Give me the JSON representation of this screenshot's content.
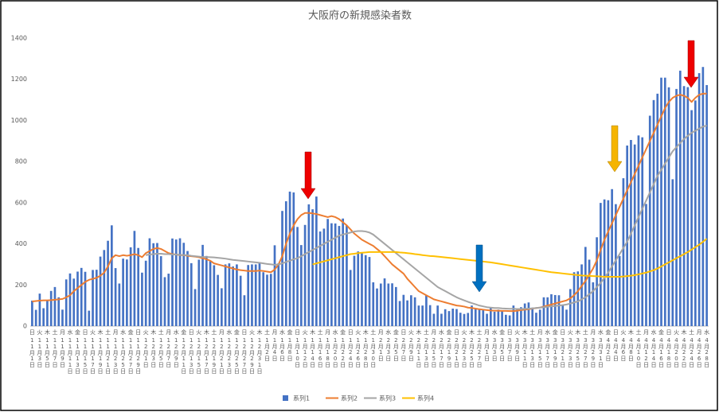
{
  "chart_data": {
    "type": "combo",
    "title": "大阪府の新規感染者数",
    "categories": [
      "11月1日",
      null,
      "11月3日",
      null,
      "11月5日",
      null,
      "11月7日",
      null,
      "11月9日",
      null,
      "11月11日",
      null,
      "11月13日",
      null,
      "11月15日",
      null,
      "11月17日",
      null,
      "11月19日",
      null,
      "11月21日",
      null,
      "11月23日",
      null,
      "11月25日",
      null,
      "11月27日",
      null,
      "11月29日",
      null,
      "12月1日",
      null,
      "12月3日",
      null,
      "12月5日",
      null,
      "12月7日",
      null,
      "12月9日",
      null,
      "12月11日",
      null,
      "12月13日",
      null,
      "12月15日",
      null,
      "12月17日",
      null,
      "12月19日",
      null,
      "12月21日",
      null,
      "12月23日",
      null,
      "12月25日",
      null,
      "12月27日",
      null,
      "12月29日",
      null,
      "12月31日",
      null,
      "1月2日",
      null,
      "1月4日",
      null,
      "1月6日",
      null,
      "1月8日",
      null,
      "1月10日",
      null,
      "1月12日",
      null,
      "1月14日",
      null,
      "1月16日",
      null,
      "1月18日",
      null,
      "1月20日",
      null,
      "1月22日",
      null,
      "1月24日",
      null,
      "1月26日",
      null,
      "1月28日",
      null,
      "1月30日",
      null,
      "2月1日",
      null,
      "2月3日",
      null,
      "2月5日",
      null,
      "2月7日",
      null,
      "2月9日",
      null,
      "2月11日",
      null,
      "2月13日",
      null,
      "2月15日",
      null,
      "2月17日",
      null,
      "2月19日",
      null,
      "2月21日",
      null,
      "2月23日",
      null,
      "2月25日",
      null,
      "2月27日",
      null,
      "3月1日",
      null,
      "3月3日",
      null,
      "3月5日",
      null,
      "3月7日",
      null,
      "3月9日",
      null,
      "3月11日",
      null,
      "3月13日",
      null,
      "3月15日",
      null,
      "3月17日",
      null,
      "3月19日",
      null,
      "3月21日",
      null,
      "3月23日",
      null,
      "3月25日",
      null,
      "3月27日",
      null,
      "3月29日",
      null,
      "3月31日",
      null,
      "4月2日",
      null,
      "4月4日",
      null,
      "4月6日",
      null,
      "4月8日",
      null,
      "4月10日",
      null,
      "4月12日",
      null,
      "4月14日",
      null,
      "4月16日",
      null,
      "4月18日",
      null,
      "4月20日",
      null,
      "4月22日",
      null,
      "4月24日",
      null,
      "4月26日",
      null,
      "4月28日"
    ],
    "weekdays": [
      "日",
      null,
      "火",
      null,
      "木",
      null,
      "土",
      null,
      "月",
      null,
      "水",
      null,
      "金",
      null,
      "日",
      null,
      "火",
      null,
      "木",
      null,
      "土",
      null,
      "月",
      null,
      "水",
      null,
      "金",
      null,
      "日",
      null,
      "火",
      null,
      "木",
      null,
      "土",
      null,
      "月",
      null,
      "水",
      null,
      "金",
      null,
      "日",
      null,
      "火",
      null,
      "木",
      null,
      "土",
      null,
      "月",
      null,
      "水",
      null,
      "金",
      null,
      "日",
      null,
      "火",
      null,
      "木",
      null,
      "土",
      null,
      "月",
      null,
      "水",
      null,
      "金",
      null,
      "日",
      null,
      "火",
      null,
      "木",
      null,
      "土",
      null,
      "月",
      null,
      "水",
      null,
      "金",
      null,
      "日",
      null,
      "火",
      null,
      "木",
      null,
      "土",
      null,
      "月",
      null,
      "水",
      null,
      "金",
      null,
      "日",
      null,
      "火",
      null,
      "木",
      null,
      "土",
      null,
      "月",
      null,
      "水",
      null,
      "金",
      null,
      "日",
      null,
      "火",
      null,
      "木",
      null,
      "土",
      null,
      "月",
      null,
      "水",
      null,
      "金",
      null,
      "日",
      null,
      "火",
      null,
      "木",
      null,
      "土",
      null,
      "月",
      null,
      "水",
      null,
      "金",
      null,
      "日",
      null,
      "火",
      null,
      "木",
      null,
      "土",
      null,
      "月",
      null,
      "水",
      null,
      "金",
      null,
      "日",
      null,
      "火",
      null,
      "木",
      null,
      "土",
      null,
      "月",
      null,
      "水",
      null,
      "金",
      null,
      "日",
      null,
      "火",
      null,
      "木",
      null,
      "土",
      null,
      "月",
      null,
      "水"
    ],
    "series": [
      {
        "name": "系列1",
        "kind": "bar",
        "color": "#4472c4",
        "values": [
          124,
          79,
          158,
          87,
          122,
          171,
          190,
          140,
          80,
          227,
          256,
          231,
          265,
          283,
          264,
          75,
          273,
          274,
          338,
          370,
          415,
          490,
          282,
          207,
          328,
          324,
          383,
          463,
          380,
          260,
          318,
          427,
          403,
          404,
          340,
          238,
          255,
          426,
          421,
          427,
          405,
          365,
          306,
          180,
          323,
          395,
          341,
          315,
          296,
          249,
          184,
          300,
          305,
          290,
          300,
          245,
          150,
          297,
          300,
          300,
          310,
          262,
          250,
          254,
          393,
          305,
          560,
          607,
          654,
          650,
          482,
          394,
          492,
          592,
          568,
          630,
          460,
          474,
          521,
          500,
          499,
          487,
          523,
          490,
          273,
          342,
          363,
          356,
          345,
          336,
          213,
          183,
          207,
          232,
          207,
          208,
          190,
          122,
          152,
          125,
          150,
          140,
          100,
          100,
          150,
          102,
          60,
          100,
          60,
          82,
          73,
          85,
          83,
          65,
          59,
          64,
          100,
          82,
          85,
          80,
          60,
          88,
          70,
          80,
          72,
          55,
          52,
          100,
          80,
          92,
          110,
          115,
          90,
          65,
          80,
          140,
          140,
          155,
          151,
          150,
          105,
          80,
          180,
          262,
          266,
          300,
          385,
          323,
          213,
          432,
          599,
          616,
          612,
          666,
          593,
          341,
          719,
          878,
          905,
          883,
          927,
          918,
          594,
          1023,
          1099,
          1130,
          1208,
          1208,
          1161,
          714,
          1153,
          1242,
          1167,
          1162,
          1050,
          1097,
          1230,
          1260,
          1172
        ]
      },
      {
        "name": "系列2",
        "kind": "line",
        "color": "#ed7d31",
        "values": [
          120,
          122,
          124,
          125,
          125,
          126,
          128,
          130,
          132,
          140,
          150,
          170,
          185,
          200,
          215,
          225,
          230,
          235,
          245,
          260,
          290,
          330,
          345,
          340,
          345,
          342,
          345,
          350,
          345,
          335,
          355,
          365,
          375,
          380,
          375,
          365,
          355,
          350,
          348,
          345,
          345,
          342,
          340,
          338,
          335,
          330,
          325,
          318,
          305,
          300,
          295,
          290,
          285,
          280,
          275,
          272,
          270,
          268,
          268,
          268,
          270,
          268,
          265,
          262,
          275,
          300,
          340,
          400,
          450,
          490,
          520,
          540,
          550,
          550,
          548,
          545,
          540,
          535,
          530,
          535,
          530,
          520,
          505,
          490,
          470,
          450,
          435,
          420,
          410,
          400,
          390,
          375,
          360,
          340,
          320,
          300,
          285,
          270,
          255,
          230,
          210,
          190,
          170,
          160,
          150,
          140,
          130,
          125,
          120,
          115,
          110,
          105,
          100,
          98,
          95,
          90,
          88,
          85,
          82,
          80,
          78,
          76,
          75,
          75,
          74,
          74,
          73,
          73,
          75,
          78,
          80,
          82,
          85,
          88,
          90,
          95,
          100,
          105,
          110,
          115,
          120,
          125,
          135,
          150,
          170,
          195,
          220,
          250,
          280,
          320,
          370,
          420,
          460,
          500,
          540,
          580,
          620,
          660,
          700,
          740,
          780,
          820,
          860,
          900,
          940,
          980,
          1020,
          1060,
          1090,
          1110,
          1120,
          1125,
          1120,
          1110,
          1090,
          1110,
          1125,
          1130,
          1130
        ]
      },
      {
        "name": "系列3",
        "kind": "line",
        "color": "#a5a5a5",
        "values": [
          null,
          null,
          null,
          null,
          null,
          null,
          null,
          null,
          null,
          null,
          null,
          null,
          null,
          null,
          null,
          null,
          null,
          null,
          null,
          null,
          null,
          null,
          null,
          null,
          null,
          null,
          null,
          null,
          null,
          null,
          345,
          348,
          350,
          352,
          352,
          350,
          350,
          348,
          348,
          346,
          345,
          345,
          342,
          340,
          338,
          336,
          336,
          335,
          334,
          332,
          330,
          328,
          325,
          322,
          320,
          318,
          316,
          314,
          312,
          310,
          308,
          305,
          302,
          300,
          298,
          300,
          305,
          312,
          318,
          325,
          330,
          340,
          350,
          360,
          370,
          380,
          390,
          400,
          410,
          420,
          430,
          440,
          445,
          450,
          455,
          460,
          462,
          462,
          460,
          455,
          445,
          430,
          415,
          400,
          385,
          370,
          355,
          340,
          325,
          310,
          295,
          280,
          265,
          250,
          235,
          220,
          205,
          190,
          180,
          170,
          160,
          150,
          140,
          132,
          125,
          118,
          112,
          106,
          100,
          96,
          92,
          90,
          88,
          88,
          86,
          85,
          84,
          84,
          83,
          83,
          84,
          85,
          86,
          88,
          90,
          92,
          94,
          96,
          98,
          100,
          102,
          105,
          110,
          115,
          120,
          130,
          140,
          155,
          170,
          190,
          210,
          235,
          260,
          290,
          320,
          350,
          380,
          410,
          450,
          490,
          530,
          570,
          610,
          650,
          690,
          730,
          760,
          790,
          820,
          850,
          870,
          890,
          910,
          925,
          940,
          950,
          960,
          970,
          975
        ]
      },
      {
        "name": "系列4",
        "kind": "line",
        "color": "#ffc000",
        "values": [
          null,
          null,
          null,
          null,
          null,
          null,
          null,
          null,
          null,
          null,
          null,
          null,
          null,
          null,
          null,
          null,
          null,
          null,
          null,
          null,
          null,
          null,
          null,
          null,
          null,
          null,
          null,
          null,
          null,
          null,
          null,
          null,
          null,
          null,
          null,
          null,
          null,
          null,
          null,
          null,
          null,
          null,
          null,
          null,
          null,
          null,
          null,
          null,
          null,
          null,
          null,
          null,
          null,
          null,
          null,
          null,
          null,
          null,
          null,
          null,
          null,
          null,
          null,
          null,
          null,
          null,
          null,
          null,
          null,
          null,
          null,
          null,
          null,
          null,
          300,
          305,
          310,
          315,
          320,
          325,
          330,
          335,
          340,
          345,
          350,
          352,
          355,
          357,
          358,
          360,
          360,
          360,
          360,
          360,
          360,
          360,
          360,
          358,
          357,
          355,
          353,
          350,
          348,
          345,
          343,
          341,
          340,
          338,
          336,
          334,
          332,
          330,
          328,
          326,
          324,
          322,
          320,
          318,
          316,
          314,
          312,
          310,
          307,
          304,
          301,
          298,
          295,
          292,
          289,
          286,
          283,
          280,
          277,
          274,
          271,
          268,
          265,
          262,
          260,
          258,
          256,
          254,
          252,
          250,
          248,
          246,
          245,
          244,
          243,
          242,
          241,
          240,
          240,
          240,
          240,
          240,
          241,
          243,
          245,
          248,
          252,
          256,
          260,
          266,
          272,
          280,
          290,
          300,
          310,
          320,
          330,
          340,
          350,
          360,
          372,
          384,
          396,
          410,
          425
        ]
      }
    ],
    "ylim": [
      0,
      1400
    ],
    "yticks": [
      0,
      200,
      400,
      600,
      800,
      1000,
      1200,
      1400
    ],
    "grid": false,
    "legend": "bottom"
  }
}
